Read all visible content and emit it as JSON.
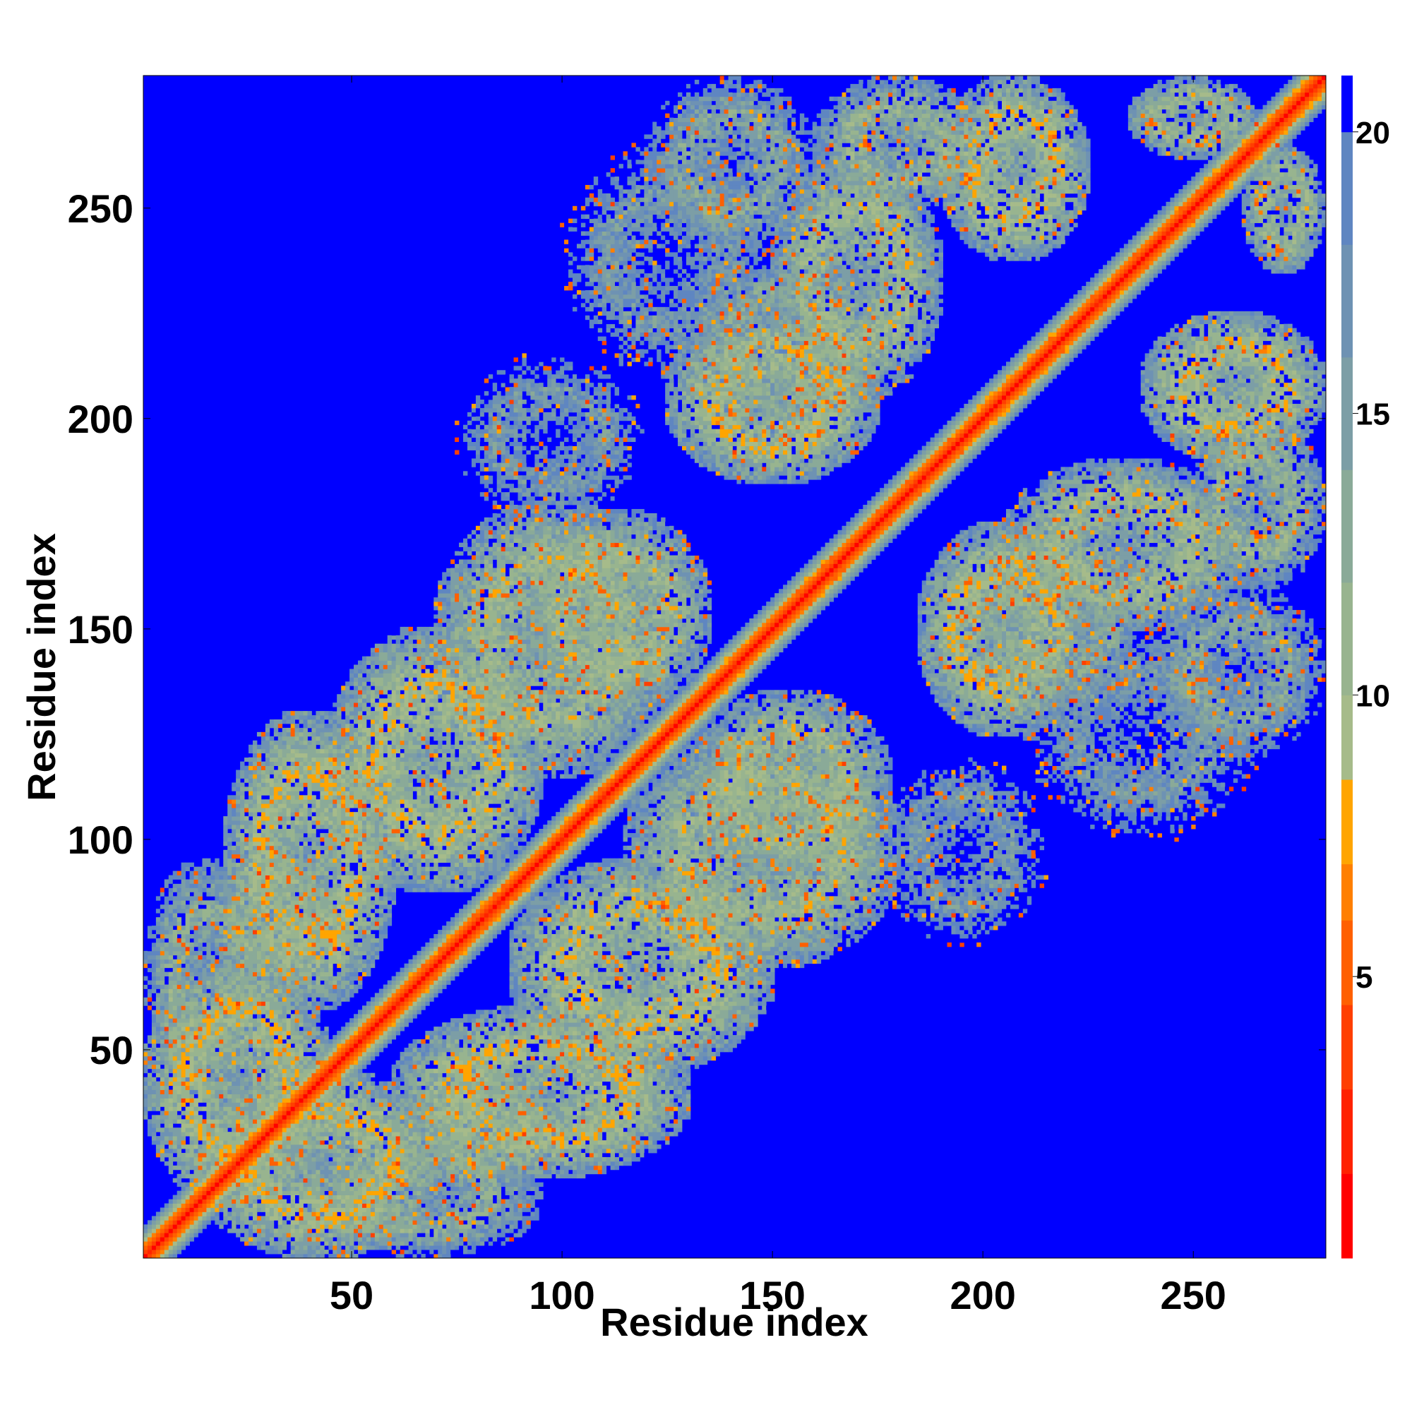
{
  "chart_data": {
    "type": "heatmap",
    "title": "",
    "xlabel": "Residue index",
    "ylabel": "Residue index",
    "xlim": [
      1,
      281
    ],
    "ylim": [
      1,
      281
    ],
    "x_ticks": [
      50,
      100,
      150,
      200,
      250
    ],
    "y_ticks": [
      50,
      100,
      150,
      200,
      250
    ],
    "n_residues": 281,
    "symmetric": true,
    "grid": false,
    "colorbar": {
      "position": "right",
      "range": [
        0,
        21
      ],
      "ticks": [
        5,
        10,
        15,
        20
      ],
      "levels": [
        {
          "max": 1.5,
          "color": "#ff0000"
        },
        {
          "max": 3.0,
          "color": "#ff2200"
        },
        {
          "max": 4.5,
          "color": "#ff3f00"
        },
        {
          "max": 6.0,
          "color": "#ff6000"
        },
        {
          "max": 7.0,
          "color": "#ff7f00"
        },
        {
          "max": 8.5,
          "color": "#ffa500"
        },
        {
          "max": 10.0,
          "color": "#a6bb8a"
        },
        {
          "max": 12.0,
          "color": "#98b48f"
        },
        {
          "max": 14.0,
          "color": "#8aaa98"
        },
        {
          "max": 16.0,
          "color": "#7c9ea6"
        },
        {
          "max": 18.0,
          "color": "#6e92b3"
        },
        {
          "max": 20.0,
          "color": "#5f86c1"
        },
        {
          "max": 21.0,
          "color": "#0000ff"
        }
      ]
    },
    "background_value": 21,
    "diagonal_band": [
      {
        "offset": 0,
        "value": 1.0
      },
      {
        "offset": 1,
        "value": 3.8
      },
      {
        "offset": 2,
        "value": 5.4
      },
      {
        "offset": 3,
        "value": 6.5
      },
      {
        "offset": 4,
        "value": 9.0
      },
      {
        "offset": 5,
        "value": 12.5
      },
      {
        "offset": 6,
        "value": 15.5
      },
      {
        "offset": 7,
        "value": 18.5
      }
    ],
    "contact_regions": [
      {
        "residues_a": [
          1,
          45
        ],
        "residues_b": [
          13,
          72
        ],
        "min_distance": 6
      },
      {
        "residues_a": [
          1,
          30
        ],
        "residues_b": [
          40,
          95
        ],
        "min_distance": 9
      },
      {
        "residues_a": [
          20,
          60
        ],
        "residues_b": [
          60,
          130
        ],
        "min_distance": 6
      },
      {
        "residues_a": [
          45,
          95
        ],
        "residues_b": [
          88,
          150
        ],
        "min_distance": 6
      },
      {
        "residues_a": [
          70,
          125
        ],
        "residues_b": [
          115,
          180
        ],
        "min_distance": 7
      },
      {
        "residues_a": [
          18,
          45
        ],
        "residues_b": [
          63,
          100
        ],
        "min_distance": 8
      },
      {
        "residues_a": [
          90,
          135
        ],
        "residues_b": [
          130,
          178
        ],
        "min_distance": 7
      },
      {
        "residues_a": [
          125,
          175
        ],
        "residues_b": [
          185,
          225
        ],
        "min_distance": 6
      },
      {
        "residues_a": [
          150,
          190
        ],
        "residues_b": [
          205,
          262
        ],
        "min_distance": 7
      },
      {
        "residues_a": [
          130,
          175
        ],
        "residues_b": [
          195,
          240
        ],
        "min_distance": 10
      },
      {
        "residues_a": [
          190,
          225
        ],
        "residues_b": [
          238,
          281
        ],
        "min_distance": 6
      },
      {
        "residues_a": [
          120,
          160
        ],
        "residues_b": [
          240,
          281
        ],
        "min_distance": 10
      },
      {
        "residues_a": [
          100,
          150
        ],
        "residues_b": [
          210,
          265
        ],
        "min_distance": 12
      },
      {
        "residues_a": [
          160,
          200
        ],
        "residues_b": [
          250,
          281
        ],
        "min_distance": 8
      },
      {
        "residues_a": [
          235,
          265
        ],
        "residues_b": [
          262,
          281
        ],
        "min_distance": 7
      },
      {
        "residues_a": [
          75,
          120
        ],
        "residues_b": [
          175,
          215
        ],
        "min_distance": 12
      }
    ]
  }
}
